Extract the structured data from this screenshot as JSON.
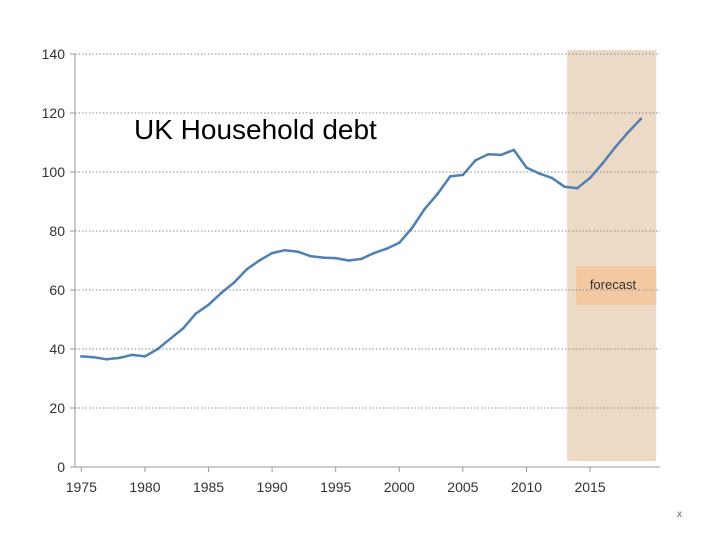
{
  "chart_data": {
    "type": "line",
    "title": "UK Household debt",
    "xlabel": "",
    "ylabel": "",
    "xlim": [
      1974.5,
      2020.5
    ],
    "ylim": [
      0,
      140
    ],
    "x_ticks": [
      1975,
      1980,
      1985,
      1990,
      1995,
      2000,
      2005,
      2010,
      2015
    ],
    "y_ticks": [
      0,
      20,
      40,
      60,
      80,
      100,
      120,
      140
    ],
    "grid": "horizontal dotted",
    "series": [
      {
        "color": "#4f7fb3",
        "x": [
          1975,
          1976,
          1977,
          1978,
          1979,
          1980,
          1981,
          1982,
          1983,
          1984,
          1985,
          1986,
          1987,
          1988,
          1989,
          1990,
          1991,
          1992,
          1993,
          1994,
          1995,
          1996,
          1997,
          1998,
          1999,
          2000,
          2001,
          2002,
          2003,
          2004,
          2005,
          2006,
          2007,
          2008,
          2009,
          2010,
          2011,
          2012,
          2013,
          2014,
          2015,
          2016,
          2017,
          2018,
          2019
        ],
        "y": [
          37.5,
          37.2,
          36.5,
          37,
          38,
          37.5,
          40,
          43.5,
          47,
          52,
          55,
          59,
          62.5,
          67,
          70,
          72.5,
          73.5,
          73,
          71.5,
          71,
          70.8,
          70,
          70.5,
          72.5,
          74,
          76,
          81,
          87.5,
          92.5,
          98.5,
          99,
          104,
          106,
          105.8,
          107.5,
          101.5,
          99.5,
          98,
          95,
          94.5,
          98,
          103,
          108.5,
          113.5,
          118
        ]
      }
    ],
    "forecast_region": {
      "x_start": 2013.2,
      "x_end": 2020.2,
      "color": "#ecd9c6"
    },
    "annotations": [
      {
        "text": "forecast",
        "x": 2016.8,
        "y": 62,
        "box_y": [
          55,
          68
        ],
        "box_color": "#f2c9a1"
      }
    ]
  },
  "corner_mark": "x"
}
